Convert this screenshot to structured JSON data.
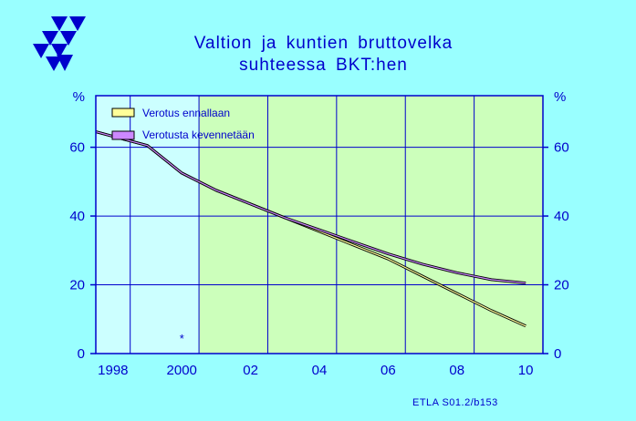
{
  "title": {
    "line1": "Valtion ja kuntien bruttovelka",
    "line2": "suhteessa BKT:hen"
  },
  "source_note": "ETLA S01.2/b153",
  "colors": {
    "background": "#99FFFF",
    "plot_history": "#CCFFFF",
    "plot_forecast": "#CCFFBB",
    "axis": "#0000CC",
    "grid": "#0000CC",
    "series_1": "#FFFF99",
    "series_2": "#CC88FF"
  },
  "icons": {
    "logo": "etla-triangles-logo"
  },
  "chart_data": {
    "type": "line",
    "title": "Valtion ja kuntien bruttovelka suhteessa BKT:hen",
    "ylabel_left": "%",
    "ylabel_right": "%",
    "x": [
      1997.5,
      1999,
      2000,
      2001,
      2002,
      2003,
      2004,
      2005,
      2006,
      2007,
      2008,
      2009,
      2010
    ],
    "xlim": [
      1997.5,
      2010.5
    ],
    "ylim": [
      0,
      75
    ],
    "x_tick_values": [
      1998,
      2000,
      2002,
      2004,
      2006,
      2008,
      2010
    ],
    "x_tick_labels": [
      "1998",
      "2000",
      "02",
      "04",
      "06",
      "08",
      "10"
    ],
    "y_ticks": [
      0,
      20,
      40,
      60
    ],
    "forecast_start": 2000.5,
    "series": [
      {
        "name": "Verotus ennallaan",
        "values": [
          64.5,
          60.5,
          52.5,
          47.5,
          43.5,
          39.5,
          35.5,
          31.5,
          27.5,
          22.5,
          17.5,
          12.5,
          8
        ]
      },
      {
        "name": "Verotusta kevennetään",
        "values": [
          64.5,
          60.5,
          52.5,
          47.5,
          43.5,
          39.5,
          36,
          32.5,
          29,
          26,
          23.5,
          21.5,
          20.5
        ]
      }
    ],
    "annotation": "*",
    "annotation_x": 2000,
    "annotation_y": 4.5,
    "grid": true,
    "legend_position": "top-left"
  }
}
